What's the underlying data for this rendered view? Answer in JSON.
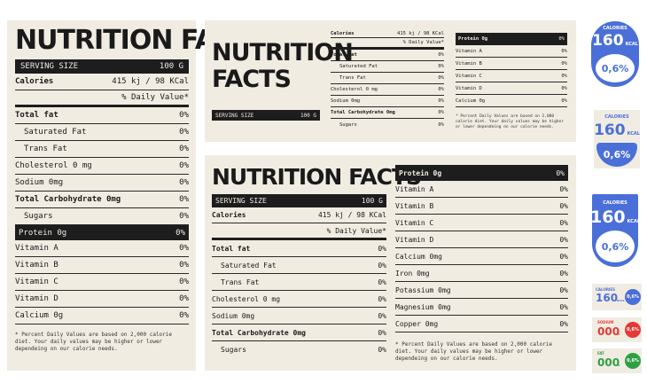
{
  "label1": {
    "title": "NUTRITION FACTS",
    "serving_label": "SERVING SIZE",
    "serving_value": "100 G",
    "calories_label": "Calories",
    "calories_value": "415 kj / 98 KCal",
    "daily_value": "% Daily Value*",
    "rows": [
      {
        "label": "Total fat",
        "value": "0%"
      },
      {
        "label": "Saturated Fat",
        "value": "0%"
      },
      {
        "label": "Trans Fat",
        "value": "0%"
      },
      {
        "label": "Cholesterol 0 mg",
        "value": "0%"
      },
      {
        "label": "Sodium 0mg",
        "value": "0%"
      },
      {
        "label": "Total Carbohydrate 0mg",
        "value": "0%"
      },
      {
        "label": "Sugars",
        "value": "0%"
      }
    ],
    "protein_label": "Protein 0g",
    "protein_value": "0%",
    "vitamins": [
      {
        "label": "Vitamin A",
        "value": "0%"
      },
      {
        "label": "Vitamin B",
        "value": "0%"
      },
      {
        "label": "Vitamin C",
        "value": "0%"
      },
      {
        "label": "Vitamin D",
        "value": "0%"
      },
      {
        "label": "Calcium 0g",
        "value": "0%"
      }
    ],
    "footnote": "* Percent Daily Values are based on 2,000 calorie diet. Your daily values may be higher or lower dependeing on our calorie needs."
  },
  "label2": {
    "title_line1": "NUTRITION",
    "title_line2": "FACTS",
    "serving_label": "SERVING SIZE",
    "serving_value": "100 G",
    "calories_label": "Calories",
    "calories_value": "415 kj / 98 KCal",
    "daily_value": "% Daily Value*",
    "rows": [
      {
        "label": "Total fat",
        "value": "0%"
      },
      {
        "label": "Saturated Fat",
        "value": "0%"
      },
      {
        "label": "Trans Fat",
        "value": "0%"
      },
      {
        "label": "Cholesterol 0 mg",
        "value": "0%"
      },
      {
        "label": "Sodium 0mg",
        "value": "0%"
      },
      {
        "label": "Total Carbohydrate 0mg",
        "value": "0%"
      },
      {
        "label": "Sugars",
        "value": "0%"
      }
    ],
    "protein_label": "Protein 0g",
    "protein_value": "0%",
    "vitamins": [
      {
        "label": "Vitamin A",
        "value": "0%"
      },
      {
        "label": "Vitamin B",
        "value": "0%"
      },
      {
        "label": "Vitamin C",
        "value": "0%"
      },
      {
        "label": "Vitamin D",
        "value": "0%"
      },
      {
        "label": "Calcium 0g",
        "value": "0%"
      }
    ],
    "footnote": "* Percent Daily Values are based on 2,000 calorie diet. Your daily values may be higher or lower dependeing on our calorie needs."
  },
  "label3": {
    "title": "NUTRITION FACTS",
    "serving_label": "SERVING SIZE",
    "serving_value": "100 G",
    "calories_label": "Calories",
    "calories_value": "415 kj / 98 KCal",
    "daily_value": "% Daily Value*",
    "rows": [
      {
        "label": "Total fat",
        "value": "0%"
      },
      {
        "label": "Saturated Fat",
        "value": "0%"
      },
      {
        "label": "Trans Fat",
        "value": "0%"
      },
      {
        "label": "Cholesterol 0 mg",
        "value": "0%"
      },
      {
        "label": "Sodium 0mg",
        "value": "0%"
      },
      {
        "label": "Total Carbohydrate 0mg",
        "value": "0%"
      },
      {
        "label": "Sugars",
        "value": "0%"
      }
    ],
    "protein_label": "Protein 0g",
    "protein_value": "0%",
    "vitamins": [
      {
        "label": "Vitamin A",
        "value": "0%"
      },
      {
        "label": "Vitamin B",
        "value": "0%"
      },
      {
        "label": "Vitamin C",
        "value": "0%"
      },
      {
        "label": "Vitamin D",
        "value": "0%"
      },
      {
        "label": "Calcium 0mg",
        "value": "0%"
      },
      {
        "label": "Iron 0mg",
        "value": "0%"
      },
      {
        "label": "Potassium 0mg",
        "value": "0%"
      },
      {
        "label": "Magnesium 0mg",
        "value": "0%"
      },
      {
        "label": "Copper 0mg",
        "value": "0%"
      }
    ],
    "footnote": "* Percent Daily Values are based on 2,000 calorie diet. Your daily values may be higher or lower dependeing on our calorie needs."
  },
  "badges": {
    "label": "CALORIES",
    "value": "160",
    "unit": "KCAL",
    "percent": "0,6%"
  },
  "mini": [
    {
      "label": "CALORIES",
      "value": "160",
      "unit": "KCAL",
      "percent": "0,6%",
      "color": "#4a6fd8"
    },
    {
      "label": "SODIUM",
      "value": "000",
      "unit": "G",
      "percent": "0,6%",
      "color": "#e53935"
    },
    {
      "label": "FAT",
      "value": "000",
      "unit": "G",
      "percent": "0,6%",
      "color": "#2ea043"
    }
  ],
  "colors": {
    "blue": "#4a6fd8",
    "paper": "#f1ece2",
    "ink": "#1d1d1d"
  }
}
